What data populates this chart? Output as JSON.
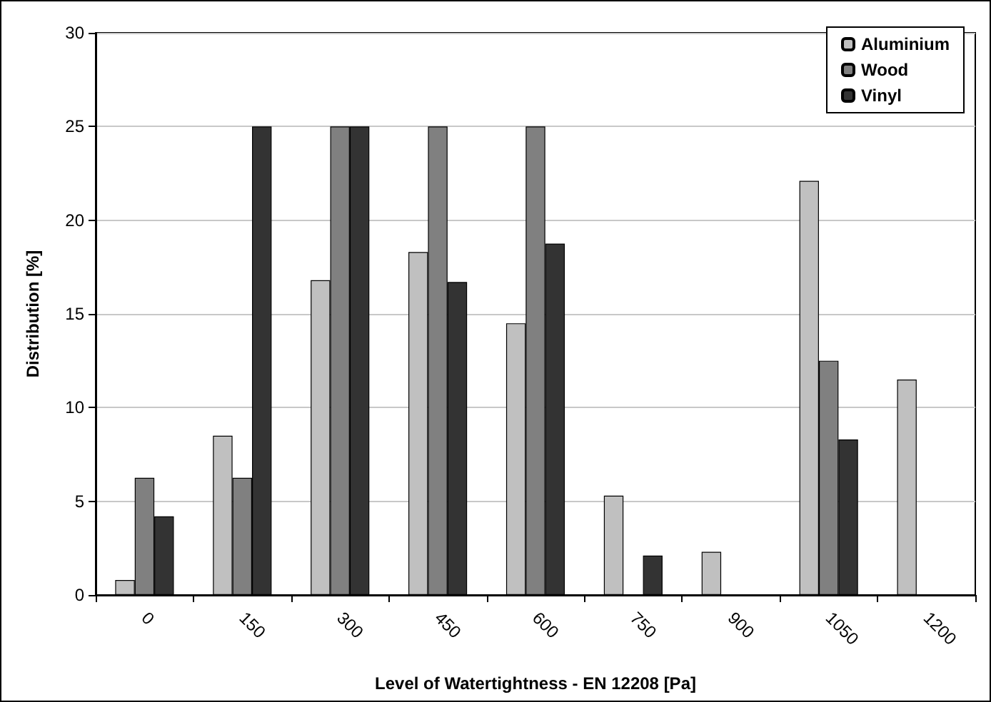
{
  "chart_data": {
    "type": "bar",
    "xlabel": "Level of Watertightness - EN 12208 [Pa]",
    "ylabel": "Distribution [%]",
    "categories": [
      "0",
      "150",
      "300",
      "450",
      "600",
      "750",
      "900",
      "1050",
      "1200"
    ],
    "series": [
      {
        "name": "Aluminium",
        "color": "#c0c0c0",
        "values": [
          0.8,
          8.5,
          16.8,
          18.3,
          14.5,
          5.3,
          2.3,
          22.1,
          11.5
        ]
      },
      {
        "name": "Wood",
        "color": "#808080",
        "values": [
          6.25,
          6.25,
          25,
          25,
          25,
          null,
          null,
          12.5,
          null
        ]
      },
      {
        "name": "Vinyl",
        "color": "#333333",
        "values": [
          4.2,
          25,
          25,
          16.7,
          18.75,
          2.1,
          null,
          8.3,
          null
        ]
      }
    ],
    "ylim": [
      0,
      30
    ],
    "yticks": [
      0,
      5,
      10,
      15,
      20,
      25,
      30
    ],
    "grid": "y",
    "legend": "top right"
  }
}
